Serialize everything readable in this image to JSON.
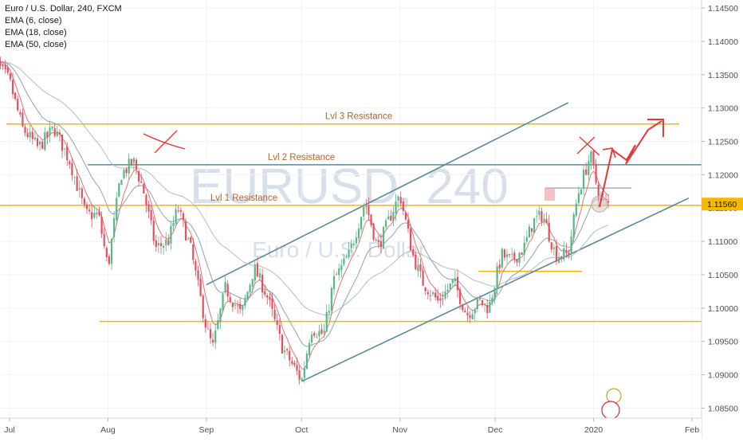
{
  "header": {
    "symbol_line": "Euro / U.S. Dollar, 240, FXCM",
    "indicators": [
      "EMA (6, close)",
      "EMA (18, close)",
      "EMA (50, close)"
    ]
  },
  "watermark": {
    "ticker": "EURUSD, 240",
    "name": "Euro / U.S. Dollar"
  },
  "colors": {
    "candle_up": "#53b987",
    "candle_down": "#eb4d5c",
    "ema_fast": "#e57373",
    "ema_mid": "#90a4ae",
    "ema_slow": "#b0bec5",
    "support_line": "#f5b800",
    "channel_line": "#5b8a9a",
    "annotation": "#e53935",
    "price_tag": "#f5b800"
  },
  "chart_data": {
    "type": "candlestick",
    "y_axis": {
      "range": [
        1.0835,
        1.1462
      ],
      "ticks": [
        "1.14500",
        "1.14000",
        "1.13500",
        "1.13000",
        "1.12500",
        "1.12000",
        "1.11500",
        "1.11000",
        "1.10500",
        "1.10000",
        "1.09500",
        "1.09000",
        "1.08500"
      ]
    },
    "x_axis": {
      "ticks": [
        "Jul",
        "Aug",
        "Sep",
        "Oct",
        "Nov",
        "Dec",
        "2020",
        "Feb"
      ]
    },
    "current_price": "1.11560",
    "horizontal_levels": [
      {
        "label": "Lvl 3 Resistance",
        "price": 1.1276
      },
      {
        "label": "Lvl 2 Resistance",
        "price": 1.1215
      },
      {
        "label": "Lvl 1 Resistance",
        "price": 1.1154
      },
      {
        "label": "",
        "price": 1.1055
      },
      {
        "label": "",
        "price": 1.098
      }
    ],
    "channel": {
      "upper": [
        [
          "2019-09-01",
          1.1035
        ],
        [
          "2019-12-24",
          1.1308
        ]
      ],
      "lower": [
        [
          "2019-10-01",
          1.089
        ],
        [
          "2020-01-31",
          1.1165
        ]
      ]
    },
    "price_path": [
      [
        "2019-06-25",
        1.138
      ],
      [
        "2019-07-01",
        1.134
      ],
      [
        "2019-07-05",
        1.127
      ],
      [
        "2019-07-10",
        1.124
      ],
      [
        "2019-07-15",
        1.127
      ],
      [
        "2019-07-20",
        1.122
      ],
      [
        "2019-07-25",
        1.114
      ],
      [
        "2019-07-29",
        1.114
      ],
      [
        "2019-08-01",
        1.106
      ],
      [
        "2019-08-05",
        1.12
      ],
      [
        "2019-08-09",
        1.122
      ],
      [
        "2019-08-12",
        1.118
      ],
      [
        "2019-08-16",
        1.109
      ],
      [
        "2019-08-20",
        1.11
      ],
      [
        "2019-08-23",
        1.115
      ],
      [
        "2019-08-27",
        1.109
      ],
      [
        "2019-09-01",
        1.097
      ],
      [
        "2019-09-03",
        1.094
      ],
      [
        "2019-09-07",
        1.103
      ],
      [
        "2019-09-12",
        1.099
      ],
      [
        "2019-09-16",
        1.106
      ],
      [
        "2019-09-20",
        1.102
      ],
      [
        "2019-09-25",
        1.094
      ],
      [
        "2019-09-30",
        1.09
      ],
      [
        "2019-10-01",
        1.089
      ],
      [
        "2019-10-04",
        1.097
      ],
      [
        "2019-10-08",
        1.096
      ],
      [
        "2019-10-11",
        1.104
      ],
      [
        "2019-10-16",
        1.108
      ],
      [
        "2019-10-21",
        1.116
      ],
      [
        "2019-10-25",
        1.109
      ],
      [
        "2019-10-30",
        1.115
      ],
      [
        "2019-11-01",
        1.117
      ],
      [
        "2019-11-05",
        1.108
      ],
      [
        "2019-11-08",
        1.104
      ],
      [
        "2019-11-13",
        1.101
      ],
      [
        "2019-11-18",
        1.104
      ],
      [
        "2019-11-22",
        1.099
      ],
      [
        "2019-11-26",
        1.101
      ],
      [
        "2019-11-29",
        1.1
      ],
      [
        "2019-12-03",
        1.108
      ],
      [
        "2019-12-06",
        1.107
      ],
      [
        "2019-12-10",
        1.109
      ],
      [
        "2019-12-13",
        1.113
      ],
      [
        "2019-12-16",
        1.114
      ],
      [
        "2019-12-20",
        1.108
      ],
      [
        "2019-12-24",
        1.108
      ],
      [
        "2019-12-27",
        1.117
      ],
      [
        "2019-12-31",
        1.123
      ],
      [
        "2020-01-03",
        1.116
      ],
      [
        "2020-01-06",
        1.1156
      ]
    ],
    "annotations": [
      "x-mark-aug",
      "x-mark-dec",
      "forecast-arrow",
      "price-circle",
      "red-box-dec"
    ]
  }
}
